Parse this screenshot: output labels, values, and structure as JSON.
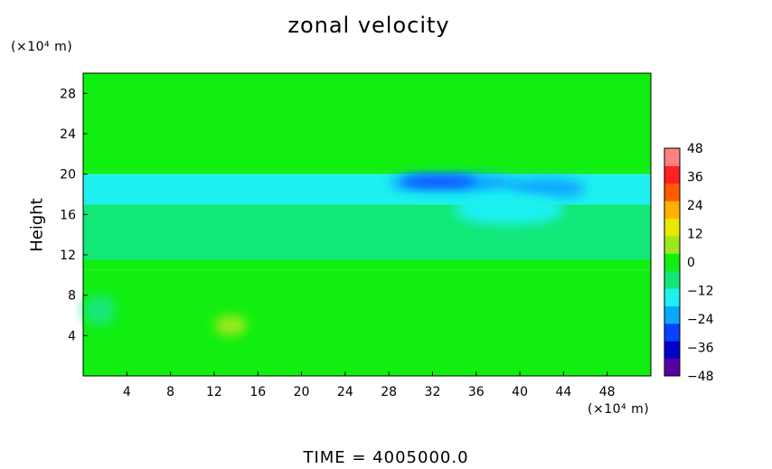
{
  "chart_data": {
    "type": "heatmap",
    "title": "zonal velocity",
    "xlabel": "",
    "ylabel": "Height",
    "x_unit": "(×10⁴ m)",
    "y_unit": "(×10⁴ m)",
    "xlim": [
      0,
      52
    ],
    "ylim": [
      0,
      30
    ],
    "x_ticks": [
      4,
      8,
      12,
      16,
      20,
      24,
      28,
      32,
      36,
      40,
      44,
      48
    ],
    "y_ticks": [
      4,
      8,
      12,
      16,
      20,
      24,
      28
    ],
    "colorbar": {
      "ticks": [
        48,
        36,
        24,
        12,
        0,
        -12,
        -24,
        -36,
        -48
      ],
      "tick_labels": [
        "48",
        "36",
        "24",
        "12",
        "0",
        "−12",
        "−24",
        "−36",
        "−48"
      ],
      "range": [
        -48,
        48
      ],
      "colors_low_to_high": [
        "#5a00a0",
        "#0000c8",
        "#0a40ff",
        "#0aa8ff",
        "#1ef0f0",
        "#12e878",
        "#10ef10",
        "#9ce81a",
        "#e8e800",
        "#ffb000",
        "#ff5a00",
        "#ff2020",
        "#ff8080"
      ]
    },
    "regions": [
      {
        "x": [
          0,
          52
        ],
        "y": [
          20.3,
          30
        ],
        "value": 1
      },
      {
        "x": [
          0,
          52
        ],
        "y": [
          20.0,
          20.3
        ],
        "value": 3
      },
      {
        "x": [
          0,
          52
        ],
        "y": [
          17.0,
          20.0
        ],
        "value": -12
      },
      {
        "x": [
          0,
          52
        ],
        "y": [
          11.5,
          17.0
        ],
        "value": -8
      },
      {
        "x": [
          0,
          52
        ],
        "y": [
          10.5,
          11.5
        ],
        "value": -2
      },
      {
        "x": [
          0,
          52
        ],
        "y": [
          0,
          10.5
        ],
        "value": 2
      },
      {
        "x": [
          28,
          40
        ],
        "y": [
          18.2,
          20.0
        ],
        "value": -22
      },
      {
        "x": [
          29,
          36
        ],
        "y": [
          18.8,
          19.8
        ],
        "value": -32
      },
      {
        "x": [
          39,
          46
        ],
        "y": [
          17.6,
          19.6
        ],
        "value": -20
      },
      {
        "x": [
          34,
          44
        ],
        "y": [
          15.0,
          18.0
        ],
        "value": -14
      },
      {
        "x": [
          12,
          15
        ],
        "y": [
          4.0,
          6.0
        ],
        "value": 6
      },
      {
        "x": [
          0,
          3
        ],
        "y": [
          5.0,
          8.0
        ],
        "value": -6
      }
    ],
    "footer": "TIME  =  4005000.0"
  }
}
